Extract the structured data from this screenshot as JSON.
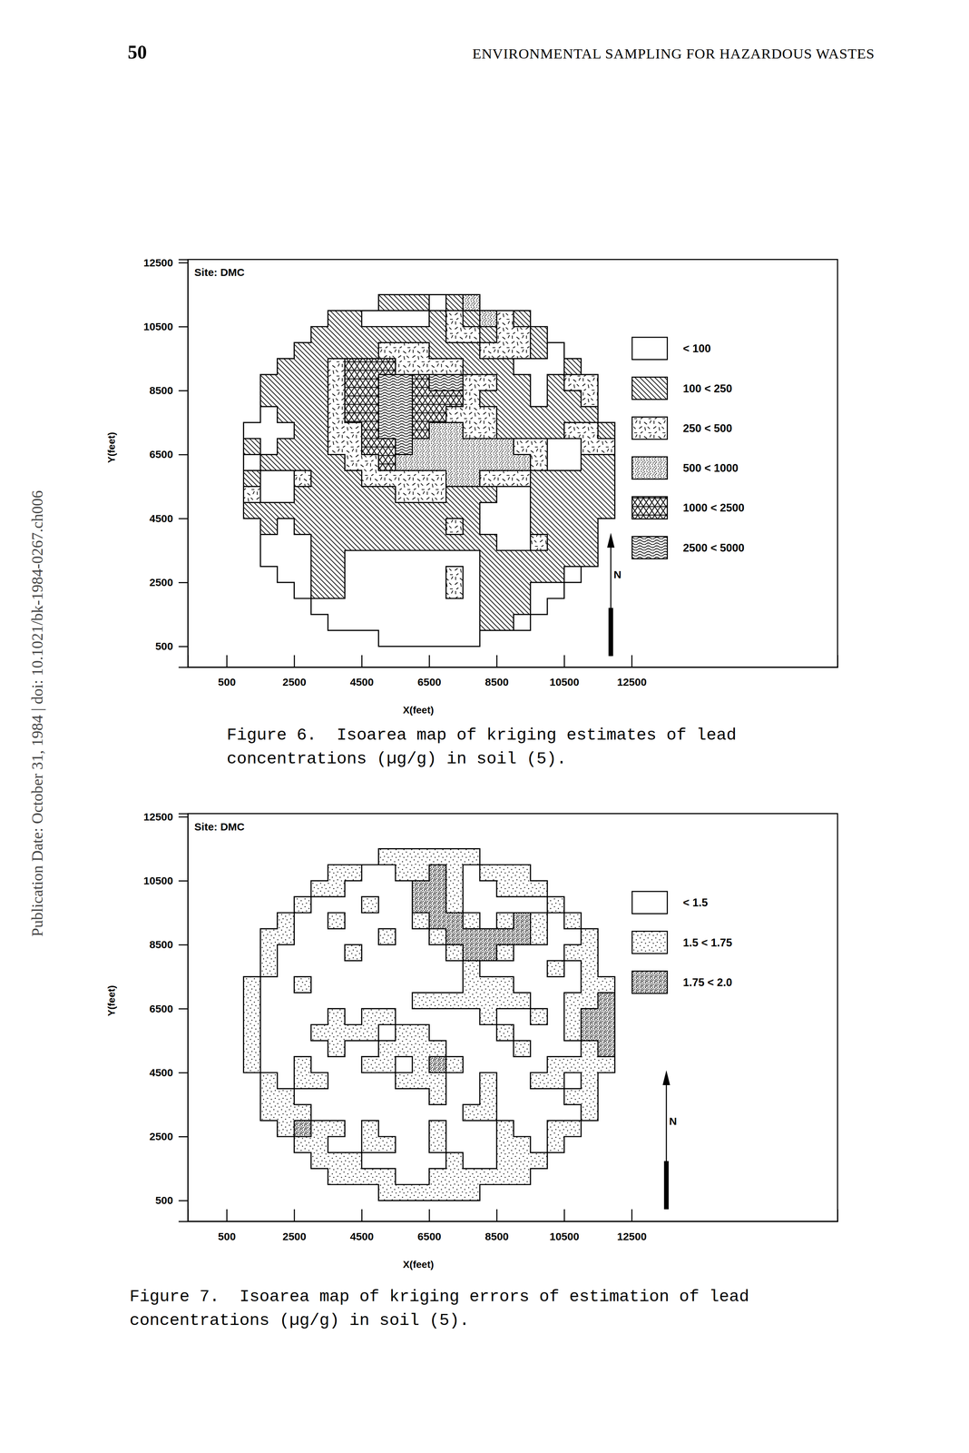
{
  "header": {
    "page_number": 50,
    "running_title": "ENVIRONMENTAL SAMPLING FOR HAZARDOUS WASTES"
  },
  "side_note": "Publication Date: October 31, 1984 | doi: 10.1021/bk-1984-0267.ch006",
  "chart_data": [
    {
      "type": "heatmap",
      "title": "Site: DMC",
      "caption": [
        "Figure 6.  Isoarea map of kriging estimates of lead",
        "concentrations (µg/g) in soil (5)."
      ],
      "x_label": "X(feet)",
      "y_label": "Y(feet)",
      "north_label": "N",
      "xlim": [
        -650,
        18600
      ],
      "ylim": [
        -150,
        12600
      ],
      "xticks": [
        500,
        2500,
        4500,
        6500,
        8500,
        10500,
        12500
      ],
      "yticks": [
        500,
        2500,
        4500,
        6500,
        8500,
        10500,
        12500
      ],
      "classes": [
        "< 100",
        "100 < 250",
        "250 < 500",
        "500 < 1000",
        "1000 < 2500",
        "2500 < 5000"
      ],
      "x_edges": [
        1000,
        1500,
        2000,
        2500,
        3000,
        3500,
        4000,
        4500,
        5000,
        5500,
        6000,
        6500,
        7000,
        7500,
        8000,
        8500,
        9000,
        9500,
        10000,
        10500,
        11000,
        11500,
        12000
      ],
      "y_edges": [
        11500,
        11000,
        10500,
        10000,
        9500,
        9000,
        8500,
        8000,
        7500,
        7000,
        6500,
        6000,
        5500,
        5000,
        4500,
        4000,
        3500,
        3000,
        2500,
        2000,
        1500,
        1000,
        500
      ],
      "cells": [
        [
          null,
          null,
          null,
          null,
          null,
          null,
          null,
          null,
          1,
          1,
          1,
          0,
          1,
          3,
          null,
          null,
          null,
          null,
          null,
          null,
          null,
          null
        ],
        [
          null,
          null,
          null,
          null,
          null,
          1,
          1,
          0,
          0,
          0,
          0,
          1,
          2,
          1,
          3,
          2,
          1,
          null,
          null,
          null,
          null,
          null
        ],
        [
          null,
          null,
          null,
          null,
          1,
          1,
          1,
          1,
          1,
          1,
          1,
          1,
          2,
          2,
          1,
          2,
          2,
          1,
          null,
          null,
          null,
          null
        ],
        [
          null,
          null,
          null,
          1,
          1,
          1,
          1,
          1,
          2,
          2,
          2,
          1,
          1,
          1,
          2,
          2,
          2,
          1,
          0,
          null,
          null,
          null
        ],
        [
          null,
          null,
          1,
          1,
          1,
          2,
          4,
          4,
          4,
          2,
          2,
          2,
          2,
          1,
          1,
          1,
          0,
          0,
          0,
          1,
          null,
          null
        ],
        [
          null,
          1,
          1,
          1,
          1,
          2,
          4,
          4,
          5,
          5,
          4,
          5,
          5,
          2,
          2,
          1,
          1,
          0,
          1,
          2,
          2,
          null
        ],
        [
          null,
          1,
          1,
          1,
          1,
          2,
          4,
          4,
          5,
          5,
          4,
          4,
          4,
          2,
          1,
          1,
          1,
          0,
          1,
          1,
          2,
          null
        ],
        [
          null,
          0,
          1,
          1,
          1,
          2,
          4,
          4,
          5,
          5,
          4,
          4,
          2,
          2,
          2,
          1,
          1,
          1,
          1,
          1,
          1,
          null
        ],
        [
          0,
          0,
          0,
          1,
          1,
          2,
          2,
          4,
          5,
          5,
          4,
          3,
          3,
          2,
          2,
          1,
          1,
          1,
          1,
          2,
          2,
          1
        ],
        [
          1,
          0,
          1,
          1,
          1,
          2,
          2,
          4,
          4,
          5,
          3,
          3,
          3,
          3,
          3,
          3,
          2,
          2,
          0,
          0,
          2,
          2
        ],
        [
          0,
          1,
          1,
          1,
          1,
          1,
          2,
          2,
          4,
          3,
          3,
          3,
          3,
          3,
          3,
          3,
          3,
          2,
          0,
          0,
          1,
          1
        ],
        [
          1,
          0,
          0,
          2,
          1,
          1,
          1,
          2,
          2,
          2,
          2,
          2,
          3,
          3,
          2,
          2,
          2,
          1,
          1,
          1,
          1,
          1
        ],
        [
          2,
          0,
          0,
          1,
          1,
          1,
          1,
          1,
          1,
          2,
          2,
          2,
          1,
          1,
          1,
          0,
          0,
          1,
          1,
          1,
          1,
          1
        ],
        [
          1,
          1,
          1,
          1,
          1,
          1,
          1,
          1,
          1,
          1,
          1,
          1,
          1,
          1,
          0,
          0,
          0,
          1,
          1,
          1,
          1,
          1
        ],
        [
          null,
          1,
          0,
          1,
          1,
          1,
          1,
          1,
          1,
          1,
          1,
          1,
          2,
          1,
          0,
          0,
          0,
          1,
          1,
          1,
          1,
          null
        ],
        [
          null,
          0,
          0,
          0,
          1,
          1,
          1,
          1,
          1,
          1,
          1,
          1,
          1,
          1,
          1,
          0,
          0,
          2,
          1,
          1,
          1,
          null
        ],
        [
          null,
          0,
          0,
          0,
          1,
          1,
          0,
          0,
          0,
          0,
          0,
          0,
          0,
          0,
          1,
          1,
          1,
          1,
          1,
          1,
          1,
          null
        ],
        [
          null,
          null,
          0,
          0,
          1,
          1,
          0,
          0,
          0,
          0,
          0,
          0,
          2,
          0,
          1,
          1,
          1,
          1,
          1,
          0,
          null,
          null
        ],
        [
          null,
          null,
          null,
          0,
          1,
          1,
          0,
          0,
          0,
          0,
          0,
          0,
          2,
          0,
          1,
          1,
          1,
          0,
          0,
          null,
          null,
          null
        ],
        [
          null,
          null,
          null,
          null,
          0,
          0,
          0,
          0,
          0,
          0,
          0,
          0,
          0,
          0,
          1,
          1,
          1,
          0,
          null,
          null,
          null,
          null
        ],
        [
          null,
          null,
          null,
          null,
          null,
          0,
          0,
          0,
          0,
          0,
          0,
          0,
          0,
          0,
          1,
          1,
          0,
          null,
          null,
          null,
          null,
          null
        ],
        [
          null,
          null,
          null,
          null,
          null,
          null,
          null,
          null,
          0,
          0,
          0,
          0,
          0,
          0,
          null,
          null,
          null,
          null,
          null,
          null,
          null,
          null
        ]
      ]
    },
    {
      "type": "heatmap",
      "title": "Site: DMC",
      "caption": [
        "Figure 7.  Isoarea map of kriging errors of estimation of lead",
        "concentrations (µg/g) in soil (5)."
      ],
      "x_label": "X(feet)",
      "y_label": "Y(feet)",
      "north_label": "N",
      "xlim": [
        -650,
        18600
      ],
      "ylim": [
        -150,
        12600
      ],
      "xticks": [
        500,
        2500,
        4500,
        6500,
        8500,
        10500,
        12500
      ],
      "yticks": [
        500,
        2500,
        4500,
        6500,
        8500,
        10500,
        12500
      ],
      "classes": [
        "< 1.5",
        "1.5 < 1.75",
        "1.75 < 2.0"
      ],
      "x_edges": [
        1000,
        1500,
        2000,
        2500,
        3000,
        3500,
        4000,
        4500,
        5000,
        5500,
        6000,
        6500,
        7000,
        7500,
        8000,
        8500,
        9000,
        9500,
        10000,
        10500,
        11000,
        11500,
        12000
      ],
      "y_edges": [
        11500,
        11000,
        10500,
        10000,
        9500,
        9000,
        8500,
        8000,
        7500,
        7000,
        6500,
        6000,
        5500,
        5000,
        4500,
        4000,
        3500,
        3000,
        2500,
        2000,
        1500,
        1000,
        500
      ],
      "cells": [
        [
          null,
          null,
          null,
          null,
          null,
          null,
          null,
          null,
          1,
          1,
          1,
          1,
          1,
          1,
          null,
          null,
          null,
          null,
          null,
          null,
          null,
          null
        ],
        [
          null,
          null,
          null,
          null,
          null,
          1,
          1,
          0,
          0,
          1,
          1,
          2,
          1,
          0,
          1,
          1,
          1,
          null,
          null,
          null,
          null,
          null
        ],
        [
          null,
          null,
          null,
          null,
          1,
          1,
          0,
          0,
          0,
          0,
          2,
          2,
          1,
          0,
          0,
          1,
          1,
          1,
          null,
          null,
          null,
          null
        ],
        [
          null,
          null,
          null,
          1,
          0,
          0,
          0,
          1,
          0,
          0,
          2,
          2,
          1,
          0,
          0,
          0,
          0,
          0,
          1,
          null,
          null,
          null
        ],
        [
          null,
          null,
          1,
          0,
          0,
          1,
          0,
          0,
          0,
          0,
          1,
          2,
          2,
          1,
          0,
          1,
          2,
          1,
          0,
          1,
          null,
          null
        ],
        [
          null,
          1,
          1,
          0,
          0,
          0,
          0,
          0,
          1,
          0,
          0,
          1,
          2,
          2,
          2,
          2,
          2,
          1,
          0,
          0,
          1,
          null
        ],
        [
          null,
          1,
          0,
          0,
          0,
          0,
          1,
          0,
          0,
          0,
          0,
          0,
          1,
          2,
          2,
          1,
          0,
          0,
          0,
          1,
          1,
          null
        ],
        [
          null,
          1,
          0,
          0,
          0,
          0,
          0,
          0,
          0,
          0,
          0,
          0,
          0,
          1,
          0,
          0,
          0,
          0,
          1,
          0,
          1,
          null
        ],
        [
          1,
          0,
          0,
          1,
          0,
          0,
          0,
          0,
          0,
          0,
          0,
          0,
          0,
          1,
          1,
          1,
          0,
          0,
          0,
          0,
          1,
          1
        ],
        [
          1,
          0,
          0,
          0,
          0,
          0,
          0,
          0,
          0,
          0,
          1,
          1,
          1,
          1,
          1,
          1,
          1,
          0,
          0,
          1,
          1,
          2
        ],
        [
          1,
          0,
          0,
          0,
          0,
          1,
          0,
          1,
          1,
          0,
          0,
          0,
          0,
          0,
          1,
          0,
          0,
          1,
          0,
          1,
          2,
          2
        ],
        [
          1,
          0,
          0,
          0,
          1,
          1,
          1,
          1,
          0,
          1,
          1,
          0,
          0,
          0,
          0,
          1,
          0,
          0,
          0,
          1,
          2,
          2
        ],
        [
          1,
          0,
          0,
          0,
          0,
          1,
          0,
          0,
          1,
          1,
          1,
          1,
          0,
          0,
          0,
          0,
          1,
          0,
          0,
          0,
          1,
          2
        ],
        [
          1,
          0,
          0,
          1,
          0,
          0,
          0,
          1,
          1,
          0,
          1,
          2,
          1,
          0,
          0,
          0,
          0,
          0,
          1,
          1,
          1,
          1
        ],
        [
          null,
          1,
          0,
          1,
          1,
          0,
          0,
          0,
          0,
          1,
          1,
          1,
          0,
          0,
          1,
          0,
          0,
          1,
          1,
          0,
          1,
          null
        ],
        [
          null,
          1,
          1,
          0,
          0,
          0,
          0,
          0,
          0,
          0,
          0,
          1,
          0,
          0,
          1,
          0,
          0,
          0,
          0,
          1,
          1,
          null
        ],
        [
          null,
          1,
          1,
          1,
          0,
          0,
          0,
          0,
          0,
          0,
          0,
          0,
          0,
          1,
          1,
          0,
          0,
          0,
          0,
          0,
          1,
          null
        ],
        [
          null,
          null,
          1,
          2,
          1,
          1,
          0,
          1,
          0,
          0,
          0,
          1,
          0,
          0,
          0,
          1,
          0,
          0,
          1,
          1,
          null,
          null
        ],
        [
          null,
          null,
          null,
          1,
          1,
          0,
          0,
          1,
          1,
          0,
          0,
          1,
          0,
          0,
          0,
          1,
          1,
          0,
          1,
          null,
          null,
          null
        ],
        [
          null,
          null,
          null,
          null,
          1,
          1,
          1,
          0,
          0,
          0,
          0,
          0,
          1,
          0,
          0,
          1,
          1,
          1,
          null,
          null,
          null,
          null
        ],
        [
          null,
          null,
          null,
          null,
          null,
          1,
          1,
          1,
          1,
          0,
          0,
          1,
          1,
          1,
          1,
          1,
          1,
          null,
          null,
          null,
          null,
          null
        ],
        [
          null,
          null,
          null,
          null,
          null,
          null,
          null,
          null,
          1,
          1,
          1,
          1,
          1,
          1,
          null,
          null,
          null,
          null,
          null,
          null,
          null,
          null
        ]
      ]
    }
  ]
}
